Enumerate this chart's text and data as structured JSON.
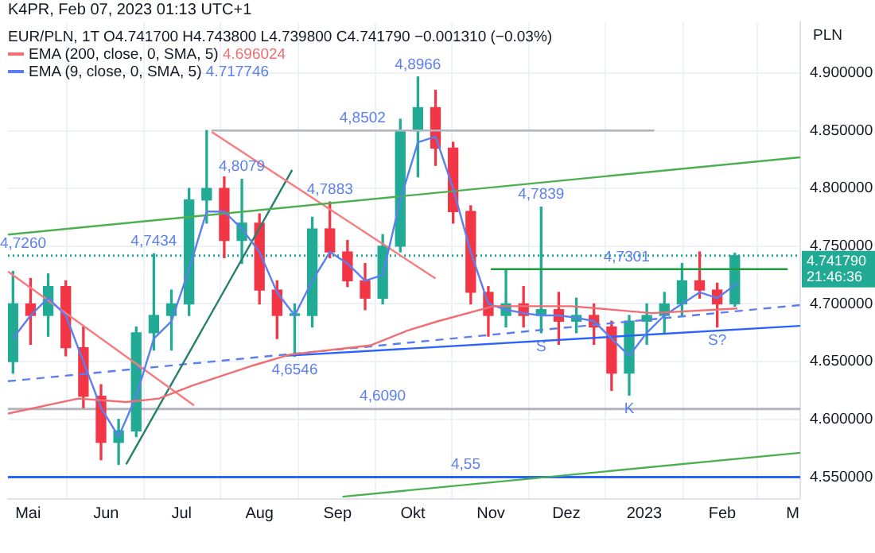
{
  "chart_data": {
    "type": "candlestick",
    "title": "K4PR, Feb 07, 2023 01:13 UTC+1",
    "subtitle": "EUR/PLN, 1T O4.741700 H4.743800 L4.739800 C4.741790 −0.001310 (−0.03%)",
    "ylabel": "PLN",
    "x": [
      "2022-04-25",
      "2022-05-02",
      "2022-05-09",
      "2022-05-16",
      "2022-05-23",
      "2022-05-30",
      "2022-06-06",
      "2022-06-13",
      "2022-06-20",
      "2022-06-27",
      "2022-07-04",
      "2022-07-11",
      "2022-07-18",
      "2022-07-25",
      "2022-08-01",
      "2022-08-08",
      "2022-08-15",
      "2022-08-22",
      "2022-08-29",
      "2022-09-05",
      "2022-09-12",
      "2022-09-19",
      "2022-09-26",
      "2022-10-03",
      "2022-10-10",
      "2022-10-17",
      "2022-10-24",
      "2022-10-31",
      "2022-11-07",
      "2022-11-14",
      "2022-11-21",
      "2022-11-28",
      "2022-12-05",
      "2022-12-12",
      "2022-12-19",
      "2022-12-26",
      "2023-01-02",
      "2023-01-09",
      "2023-01-16",
      "2023-01-23",
      "2023-01-30",
      "2023-02-06"
    ],
    "ohlc": [
      [
        4.65,
        4.728,
        4.64,
        4.7
      ],
      [
        4.7,
        4.722,
        4.665,
        4.69
      ],
      [
        4.69,
        4.726,
        4.672,
        4.715
      ],
      [
        4.715,
        4.72,
        4.655,
        4.662
      ],
      [
        4.662,
        4.68,
        4.61,
        4.62
      ],
      [
        4.62,
        4.63,
        4.565,
        4.58
      ],
      [
        4.58,
        4.6,
        4.561,
        4.59
      ],
      [
        4.59,
        4.68,
        4.585,
        4.675
      ],
      [
        4.675,
        4.7434,
        4.66,
        4.69
      ],
      [
        4.69,
        4.712,
        4.66,
        4.7
      ],
      [
        4.7,
        4.8,
        4.69,
        4.79
      ],
      [
        4.79,
        4.8502,
        4.77,
        4.8
      ],
      [
        4.8,
        4.81,
        4.74,
        4.755
      ],
      [
        4.755,
        4.8079,
        4.735,
        4.77
      ],
      [
        4.77,
        4.778,
        4.7,
        4.712
      ],
      [
        4.712,
        4.72,
        4.67,
        4.69
      ],
      [
        4.69,
        4.7,
        4.6546,
        4.69
      ],
      [
        4.69,
        4.775,
        4.68,
        4.765
      ],
      [
        4.765,
        4.7883,
        4.74,
        4.745
      ],
      [
        4.745,
        4.755,
        4.715,
        4.72
      ],
      [
        4.72,
        4.735,
        4.695,
        4.705
      ],
      [
        4.705,
        4.76,
        4.7,
        4.75
      ],
      [
        4.75,
        4.86,
        4.745,
        4.85
      ],
      [
        4.85,
        4.8966,
        4.81,
        4.87
      ],
      [
        4.87,
        4.885,
        4.82,
        4.835
      ],
      [
        4.835,
        4.84,
        4.77,
        4.78
      ],
      [
        4.78,
        4.785,
        4.7,
        4.71
      ],
      [
        4.71,
        4.715,
        4.672,
        4.69
      ],
      [
        4.69,
        4.73,
        4.68,
        4.7
      ],
      [
        4.7,
        4.715,
        4.68,
        4.69
      ],
      [
        4.69,
        4.7839,
        4.675,
        4.695
      ],
      [
        4.695,
        4.71,
        4.665,
        4.685
      ],
      [
        4.685,
        4.705,
        4.675,
        4.69
      ],
      [
        4.69,
        4.7,
        4.665,
        4.68
      ],
      [
        4.68,
        4.685,
        4.625,
        4.64
      ],
      [
        4.64,
        4.69,
        4.621,
        4.685
      ],
      [
        4.685,
        4.7,
        4.665,
        4.69
      ],
      [
        4.69,
        4.71,
        4.675,
        4.7
      ],
      [
        4.7,
        4.735,
        4.69,
        4.72
      ],
      [
        4.72,
        4.745,
        4.705,
        4.712
      ],
      [
        4.712,
        4.718,
        4.68,
        4.7
      ],
      [
        4.7,
        4.7438,
        4.698,
        4.74179
      ]
    ],
    "series": [
      {
        "type": "line",
        "name": "EMA (200, close, 0, SMA, 5)",
        "color": "#f06e73",
        "x": [
          "2022-04-23",
          "2022-05-21",
          "2022-06-09",
          "2022-06-22",
          "2022-07-05",
          "2022-07-30",
          "2022-08-13",
          "2022-09-14",
          "2022-09-29",
          "2022-10-11",
          "2022-11-02",
          "2022-12-03",
          "2023-01-04",
          "2023-02-07"
        ],
        "values": [
          4.605,
          4.618,
          4.615,
          4.618,
          4.629,
          4.647,
          4.656,
          4.664,
          4.677,
          4.685,
          4.698,
          4.698,
          4.692,
          4.696
        ]
      },
      {
        "type": "line",
        "name": "EMA (9, close, 0, SMA, 5)",
        "color": "#5b7ff0",
        "x": [
          "2022-04-25",
          "2022-05-02",
          "2022-05-09",
          "2022-05-16",
          "2022-05-23",
          "2022-05-30",
          "2022-06-06",
          "2022-06-13",
          "2022-06-20",
          "2022-06-27",
          "2022-07-04",
          "2022-07-11",
          "2022-07-18",
          "2022-07-25",
          "2022-08-01",
          "2022-08-08",
          "2022-08-15",
          "2022-08-22",
          "2022-08-29",
          "2022-09-05",
          "2022-09-12",
          "2022-09-19",
          "2022-09-26",
          "2022-10-03",
          "2022-10-10",
          "2022-10-17",
          "2022-10-24",
          "2022-10-31",
          "2022-11-07",
          "2022-11-14",
          "2022-11-21",
          "2022-11-28",
          "2022-12-05",
          "2022-12-12",
          "2022-12-19",
          "2022-12-26",
          "2023-01-02",
          "2023-01-09",
          "2023-01-16",
          "2023-01-23",
          "2023-01-30",
          "2023-02-07"
        ],
        "values": [
          4.67,
          4.69,
          4.705,
          4.69,
          4.65,
          4.61,
          4.585,
          4.62,
          4.67,
          4.685,
          4.73,
          4.78,
          4.78,
          4.765,
          4.745,
          4.71,
          4.69,
          4.72,
          4.745,
          4.735,
          4.72,
          4.725,
          4.79,
          4.84,
          4.845,
          4.8,
          4.745,
          4.7,
          4.695,
          4.692,
          4.69,
          4.69,
          4.688,
          4.685,
          4.67,
          4.655,
          4.675,
          4.69,
          4.7,
          4.71,
          4.705,
          4.718
        ]
      },
      {
        "type": "line",
        "color": "#4caf50",
        "x": [
          "2022-04-23",
          "2023-03-04"
        ],
        "values": [
          4.76,
          4.827
        ]
      },
      {
        "type": "line",
        "color": "#4caf50",
        "x": [
          "2022-09-03",
          "2023-03-04"
        ],
        "values": [
          4.533,
          4.571
        ]
      },
      {
        "type": "line",
        "color": "#f77c80",
        "x": [
          "2022-04-23",
          "2022-07-06"
        ],
        "values": [
          4.728,
          4.612
        ]
      },
      {
        "type": "line",
        "color": "#f77c80",
        "x": [
          "2022-07-13",
          "2022-10-10"
        ],
        "values": [
          4.849,
          4.722
        ]
      },
      {
        "type": "line",
        "color": "#26806b",
        "x": [
          "2022-06-09",
          "2022-08-14"
        ],
        "values": [
          4.561,
          4.816
        ]
      },
      {
        "type": "line",
        "color": "#2962ff",
        "x": [
          "2022-08-11",
          "2023-03-04"
        ],
        "values": [
          4.655,
          4.681
        ]
      },
      {
        "type": "line",
        "color": "#5b7ff0",
        "line_style": "dashed",
        "x": [
          "2022-04-23",
          "2023-03-04"
        ],
        "values": [
          4.633,
          4.699
        ]
      },
      {
        "type": "line",
        "color": "#b2b5be",
        "x": [
          "2022-07-13",
          "2023-01-05"
        ],
        "values": [
          4.8502,
          4.8502
        ]
      },
      {
        "type": "line",
        "color": "#1e9b3a",
        "x": [
          "2022-11-01",
          "2023-02-27"
        ],
        "values": [
          4.7301,
          4.7301
        ]
      }
    ],
    "ref_lines": [
      {
        "axis": "y",
        "value": 4.609,
        "color": "#b2b5be"
      },
      {
        "axis": "y",
        "value": 4.55,
        "color": "#2962ff"
      },
      {
        "axis": "y",
        "value": 4.74179,
        "color": "#22ab94",
        "line_style": "dotted",
        "label": "4.741790\n21:46:36"
      }
    ],
    "annotations": [
      "4.696024",
      "4.717746",
      {
        "text": "4,7260",
        "x": "2022-04-29",
        "y": 4.74179
      },
      {
        "text": "4,7434",
        "x": "2022-06-20",
        "y": 4.7434
      },
      {
        "text": "4,8079",
        "x": "2022-07-25",
        "y": 4.8079
      },
      {
        "text": "4,8502",
        "x": "2022-09-11",
        "y": 4.8502
      },
      {
        "text": "4,7883",
        "x": "2022-08-29",
        "y": 4.7883
      },
      {
        "text": "4,8966",
        "x": "2022-10-03",
        "y": 4.8966
      },
      {
        "text": "4,7839",
        "x": "2022-11-21",
        "y": 4.7839
      },
      {
        "text": "4,7301",
        "x": "2022-12-25",
        "y": 4.7301
      },
      {
        "text": "4,6546",
        "x": "2022-08-15",
        "y": 4.6546
      },
      {
        "text": "4,6090",
        "x": "2022-09-19",
        "y": 4.609
      },
      {
        "text": "4,55",
        "x": "2022-10-22",
        "y": 4.55
      },
      {
        "text": "S",
        "x": "2022-11-21",
        "y": 4.675
      },
      {
        "text": "K",
        "x": "2022-12-26",
        "y": 4.621
      },
      {
        "text": "S?",
        "x": "2023-01-30",
        "y": 4.68
      }
    ],
    "xlim": [
      "2022-04-23",
      "2023-03-04"
    ],
    "xticks": [
      {
        "value": "2022-05-01",
        "label": "Mai"
      },
      {
        "value": "2022-06-01",
        "label": "Jun"
      },
      {
        "value": "2022-07-01",
        "label": "Jul"
      },
      {
        "value": "2022-08-01",
        "label": "Aug"
      },
      {
        "value": "2022-09-01",
        "label": "Sep"
      },
      {
        "value": "2022-10-01",
        "label": "Okt"
      },
      {
        "value": "2022-11-01",
        "label": "Nov"
      },
      {
        "value": "2022-12-01",
        "label": "Dez"
      },
      {
        "value": "2023-01-01",
        "label": "2023"
      },
      {
        "value": "2023-02-01",
        "label": "Feb"
      },
      {
        "value": "2023-03-01",
        "label": "M"
      }
    ],
    "ylim": [
      4.531,
      4.944
    ],
    "yticks": [
      {
        "value": 4.55,
        "label": "4.550000"
      },
      {
        "value": 4.6,
        "label": "4.600000"
      },
      {
        "value": 4.65,
        "label": "4.650000"
      },
      {
        "value": 4.7,
        "label": "4.700000"
      },
      {
        "value": 4.75,
        "label": "4.750000"
      },
      {
        "value": 4.8,
        "label": "4.800000"
      },
      {
        "value": 4.85,
        "label": "4.850000"
      },
      {
        "value": 4.9,
        "label": "4.900000"
      }
    ],
    "grid": true,
    "legend": "top left",
    "marker": "none"
  }
}
